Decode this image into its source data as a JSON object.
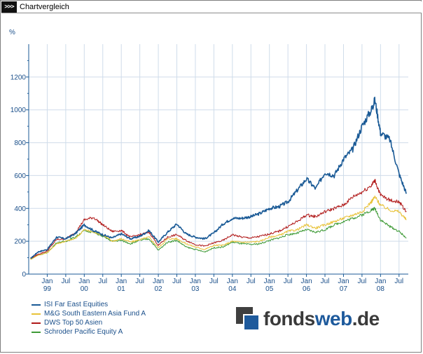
{
  "window": {
    "title": "Chartvergleich",
    "icon": ">>>"
  },
  "logo": {
    "text_part1": "fonds",
    "text_part2": "web",
    "text_part3": ".de"
  },
  "chart_data": {
    "type": "line",
    "title": "Chartvergleich",
    "ylabel": "%",
    "xlabel": "",
    "ylim": [
      0,
      1400
    ],
    "xlim": [
      1998.5,
      2008.75
    ],
    "y_ticks": [
      0,
      200,
      400,
      600,
      800,
      1000,
      1200
    ],
    "x_ticks": [
      {
        "x": 1999.0,
        "label": "Jan",
        "year": "99"
      },
      {
        "x": 1999.5,
        "label": "Jul",
        "year": ""
      },
      {
        "x": 2000.0,
        "label": "Jan",
        "year": "00"
      },
      {
        "x": 2000.5,
        "label": "Jul",
        "year": ""
      },
      {
        "x": 2001.0,
        "label": "Jan",
        "year": "01"
      },
      {
        "x": 2001.5,
        "label": "Jul",
        "year": ""
      },
      {
        "x": 2002.0,
        "label": "Jan",
        "year": "02"
      },
      {
        "x": 2002.5,
        "label": "Jul",
        "year": ""
      },
      {
        "x": 2003.0,
        "label": "Jan",
        "year": "03"
      },
      {
        "x": 2003.5,
        "label": "Jul",
        "year": ""
      },
      {
        "x": 2004.0,
        "label": "Jan",
        "year": "04"
      },
      {
        "x": 2004.5,
        "label": "Jul",
        "year": ""
      },
      {
        "x": 2005.0,
        "label": "Jan",
        "year": "05"
      },
      {
        "x": 2005.5,
        "label": "Jul",
        "year": ""
      },
      {
        "x": 2006.0,
        "label": "Jan",
        "year": "06"
      },
      {
        "x": 2006.5,
        "label": "Jul",
        "year": ""
      },
      {
        "x": 2007.0,
        "label": "Jan",
        "year": "07"
      },
      {
        "x": 2007.5,
        "label": "Jul",
        "year": ""
      },
      {
        "x": 2008.0,
        "label": "Jan",
        "year": "08"
      },
      {
        "x": 2008.5,
        "label": "Jul",
        "year": ""
      }
    ],
    "grid": true,
    "legend_position": "bottom-left",
    "x": [
      1998.55,
      1998.75,
      1999.0,
      1999.25,
      1999.5,
      1999.75,
      2000.0,
      2000.25,
      2000.5,
      2000.75,
      2001.0,
      2001.25,
      2001.5,
      2001.75,
      2002.0,
      2002.25,
      2002.5,
      2002.75,
      2003.0,
      2003.25,
      2003.5,
      2003.75,
      2004.0,
      2004.25,
      2004.5,
      2004.75,
      2005.0,
      2005.25,
      2005.5,
      2005.75,
      2006.0,
      2006.25,
      2006.5,
      2006.75,
      2007.0,
      2007.25,
      2007.5,
      2007.75,
      2007.85,
      2008.0,
      2008.25,
      2008.5,
      2008.7
    ],
    "series": [
      {
        "name": "ISI Far East Equities",
        "color": "#1a5a96",
        "values": [
          95,
          135,
          150,
          225,
          215,
          245,
          300,
          265,
          240,
          220,
          245,
          215,
          230,
          265,
          195,
          255,
          305,
          245,
          225,
          215,
          250,
          305,
          340,
          340,
          350,
          370,
          400,
          410,
          440,
          510,
          580,
          520,
          620,
          600,
          700,
          760,
          900,
          1000,
          1060,
          860,
          820,
          610,
          490
        ]
      },
      {
        "name": "M&G South Eastern Asia Fund A",
        "color": "#e8c238",
        "values": [
          90,
          115,
          130,
          185,
          200,
          215,
          270,
          255,
          240,
          200,
          215,
          195,
          210,
          225,
          160,
          215,
          215,
          185,
          165,
          150,
          175,
          175,
          200,
          195,
          195,
          200,
          225,
          235,
          260,
          270,
          300,
          280,
          300,
          320,
          340,
          360,
          380,
          440,
          470,
          420,
          390,
          380,
          330
        ]
      },
      {
        "name": "DWS Top 50 Asien",
        "color": "#b01818",
        "values": [
          95,
          120,
          140,
          210,
          215,
          250,
          330,
          345,
          300,
          260,
          265,
          225,
          240,
          255,
          175,
          225,
          240,
          205,
          180,
          170,
          190,
          205,
          240,
          225,
          220,
          230,
          245,
          260,
          290,
          320,
          360,
          350,
          380,
          400,
          420,
          470,
          500,
          540,
          570,
          480,
          450,
          440,
          380
        ]
      },
      {
        "name": "Schroder Pacific Equity A",
        "color": "#3e9a36",
        "values": [
          90,
          115,
          130,
          190,
          200,
          225,
          265,
          255,
          230,
          200,
          205,
          185,
          205,
          215,
          145,
          195,
          205,
          165,
          150,
          135,
          160,
          165,
          195,
          185,
          180,
          185,
          205,
          220,
          240,
          250,
          270,
          255,
          270,
          300,
          320,
          340,
          360,
          390,
          400,
          330,
          290,
          260,
          220
        ]
      }
    ]
  }
}
